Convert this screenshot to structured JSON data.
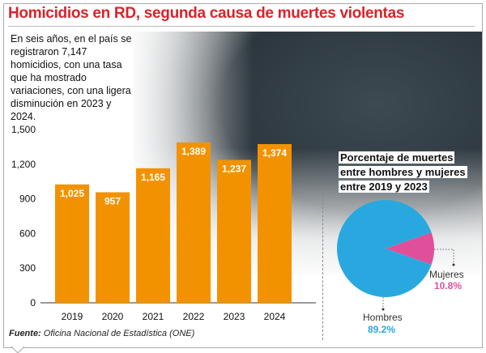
{
  "title": "Homicidios en RD, segunda causa de muertes violentas",
  "intro": "En seis años, en el país se registraron 7,147 homicidios, con una tasa que ha mostrado variaciones, con una ligera disminución en 2023 y 2024.",
  "source_label": "Fuente:",
  "source_text": "Oficina Nacional de Estadística (ONE)",
  "chart_data": [
    {
      "type": "bar",
      "categories": [
        "2019",
        "2020",
        "2021",
        "2022",
        "2023",
        "2024"
      ],
      "values": [
        1025,
        957,
        1165,
        1389,
        1237,
        1374
      ],
      "value_labels": [
        "1,025",
        "957",
        "1,165",
        "1,389",
        "1,237",
        "1,374"
      ],
      "ylim": [
        0,
        1500
      ],
      "yticks": [
        0,
        300,
        600,
        900,
        1200,
        1500
      ],
      "ytick_labels": [
        "0",
        "300",
        "600",
        "900",
        "1,200",
        "1,500"
      ],
      "color": "#f39200",
      "grid": false
    },
    {
      "type": "pie",
      "title": "Porcentaje de muertes entre hombres y mujeres entre 2019 y 2023",
      "title_lines": [
        "Porcentaje de muertes",
        "entre hombres y mujeres",
        "entre 2019 y 2023"
      ],
      "slices": [
        {
          "name": "Hombres",
          "value": 89.2,
          "label": "89.2%",
          "color": "#29a8e0"
        },
        {
          "name": "Mujeres",
          "value": 10.8,
          "label": "10.8%",
          "color": "#e0509a"
        }
      ]
    }
  ]
}
